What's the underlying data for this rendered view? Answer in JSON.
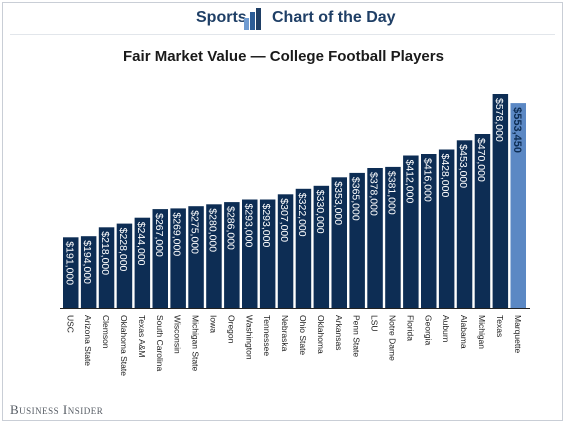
{
  "header": {
    "section": "Sports",
    "series": "Chart of the Day",
    "logo_icon": "bar-chart-icon"
  },
  "footer": {
    "brand": "Business Insider"
  },
  "colors": {
    "bar": "#0d2d54",
    "highlight": "#5b88c4",
    "label": "#ffffff",
    "highlight_label": "#0d2d54",
    "axis": "#222222"
  },
  "chart_data": {
    "type": "bar",
    "title": "Fair Market Value — College Football Players",
    "xlabel": "",
    "ylabel": "",
    "ylim": [
      0,
      578000
    ],
    "grid": false,
    "legend": "none",
    "categories": [
      "USC",
      "Arizona State",
      "Clemson",
      "Oklahoma State",
      "Texas A&M",
      "South Carolina",
      "Wisconsin",
      "Michigan State",
      "Iowa",
      "Oregon",
      "Washington",
      "Tennessee",
      "Nebraska",
      "Ohio State",
      "Oklahoma",
      "Arkansas",
      "Penn State",
      "LSU",
      "Notre Dame",
      "Florida",
      "Georgia",
      "Auburn",
      "Alabama",
      "Michigan",
      "Texas",
      "Marquette"
    ],
    "values": [
      191000,
      194000,
      218000,
      228000,
      244000,
      267000,
      269000,
      275000,
      280000,
      286000,
      293000,
      293000,
      307000,
      322000,
      330000,
      353000,
      365000,
      378000,
      381000,
      412000,
      416000,
      428000,
      453000,
      470000,
      578000,
      553450
    ],
    "value_labels": [
      "$191,000",
      "$194,000",
      "$218,000",
      "$228,000",
      "$244,000",
      "$267,000",
      "$269,000",
      "$275,000",
      "$280,000",
      "$286,000",
      "$293,000",
      "$293,000",
      "$307,000",
      "$322,000",
      "$330,000",
      "$353,000",
      "$365,000",
      "$378,000",
      "$381,000",
      "$412,000",
      "$416,000",
      "$428,000",
      "$453,000",
      "$470,000",
      "$578,000",
      "$553,450"
    ],
    "highlight_category": "Marquette"
  }
}
